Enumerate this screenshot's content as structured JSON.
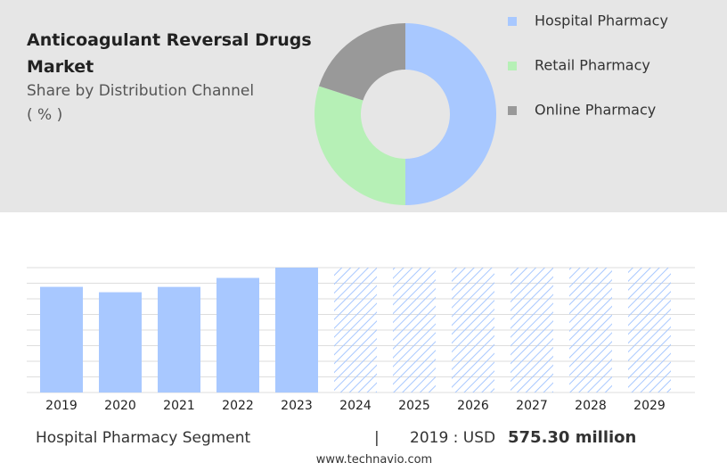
{
  "chart_data": [
    {
      "type": "pie",
      "title": "Anticoagulant Reversal Drugs Market",
      "subtitle": "Share by Distribution Channel",
      "unit": "( % )",
      "categories": [
        "Hospital Pharmacy",
        "Retail Pharmacy",
        "Online Pharmacy"
      ],
      "values": [
        50,
        30,
        20
      ],
      "colors": [
        "#a8c8ff",
        "#b6f0b6",
        "#999999"
      ]
    },
    {
      "type": "bar",
      "categories": [
        "2019",
        "2020",
        "2021",
        "2022",
        "2023",
        "2024",
        "2025",
        "2026",
        "2027",
        "2028",
        "2029"
      ],
      "values": [
        575.3,
        546,
        575,
        624,
        680,
        null,
        null,
        null,
        null,
        null,
        null
      ],
      "color": "#a8c8ff",
      "ylim": [
        0,
        680
      ],
      "yticks": [
        0,
        85,
        170,
        255,
        340,
        425,
        510,
        595,
        680
      ],
      "grid": true
    }
  ],
  "footer": {
    "segment": "Hospital Pharmacy Segment",
    "separator": "|",
    "year_label": "2019 : USD",
    "amount": "575.30 million",
    "source": "www.technavio.com"
  }
}
